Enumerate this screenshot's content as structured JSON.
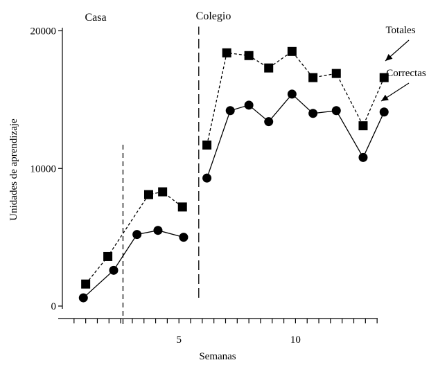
{
  "chart_data": {
    "type": "line",
    "xlabel": "Semanas",
    "ylabel": "Unidades de aprendizaje",
    "xlim": [
      0,
      15
    ],
    "ylim": [
      0,
      20000
    ],
    "xticks": [
      0.5,
      1,
      1.5,
      2,
      2.5,
      3,
      3.5,
      4,
      4.5,
      5,
      5.5,
      6,
      6.5,
      7,
      7.5,
      8,
      8.5,
      9,
      9.5,
      10,
      10.5,
      11,
      11.5,
      12,
      12.5,
      13,
      13.5,
      14
    ],
    "xtick_labels": [
      {
        "x": 5,
        "label": "5"
      },
      {
        "x": 10,
        "label": "10"
      }
    ],
    "yticks": [
      0,
      10000,
      20000
    ],
    "ytick_labels": [
      "0",
      "10000",
      "20000"
    ],
    "grid": false,
    "phases": [
      {
        "label": "Casa",
        "x": 1.6
      },
      {
        "label": "Colegio",
        "x": 6.8
      }
    ],
    "divider_lines": [
      {
        "x": 2.6,
        "ymin": 0,
        "ymax": 11800
      },
      {
        "x": 5.85,
        "ymin": 400,
        "ymax": 20300
      }
    ],
    "series": [
      {
        "name": "Totales",
        "marker": "square",
        "line_style": "dashed",
        "segments": [
          [
            {
              "x": 1.0,
              "y": 1600
            },
            {
              "x": 1.95,
              "y": 3600
            },
            {
              "x": 3.7,
              "y": 8100
            },
            {
              "x": 4.3,
              "y": 8300
            },
            {
              "x": 5.15,
              "y": 7200
            }
          ],
          [
            {
              "x": 6.2,
              "y": 11700
            },
            {
              "x": 7.05,
              "y": 18400
            },
            {
              "x": 8.0,
              "y": 18200
            },
            {
              "x": 8.85,
              "y": 17300
            },
            {
              "x": 9.85,
              "y": 18500
            },
            {
              "x": 10.75,
              "y": 16600
            },
            {
              "x": 11.75,
              "y": 16900
            },
            {
              "x": 12.9,
              "y": 13100
            },
            {
              "x": 13.8,
              "y": 16600
            }
          ]
        ]
      },
      {
        "name": "Correctas",
        "marker": "circle",
        "line_style": "solid",
        "segments": [
          [
            {
              "x": 0.9,
              "y": 600
            },
            {
              "x": 2.2,
              "y": 2600
            },
            {
              "x": 3.2,
              "y": 5200
            },
            {
              "x": 4.1,
              "y": 5500
            },
            {
              "x": 5.2,
              "y": 5000
            }
          ],
          [
            {
              "x": 6.2,
              "y": 9300
            },
            {
              "x": 7.2,
              "y": 14200
            },
            {
              "x": 8.0,
              "y": 14600
            },
            {
              "x": 8.85,
              "y": 13400
            },
            {
              "x": 9.85,
              "y": 15400
            },
            {
              "x": 10.75,
              "y": 14000
            },
            {
              "x": 11.75,
              "y": 14200
            },
            {
              "x": 12.9,
              "y": 10800
            },
            {
              "x": 13.8,
              "y": 14100
            }
          ]
        ]
      }
    ],
    "annotations": [
      {
        "text": "Totales",
        "series": "Totales"
      },
      {
        "text": "Correctas",
        "series": "Correctas"
      }
    ],
    "colors": {
      "ink": "#000000",
      "background": "#ffffff"
    }
  }
}
